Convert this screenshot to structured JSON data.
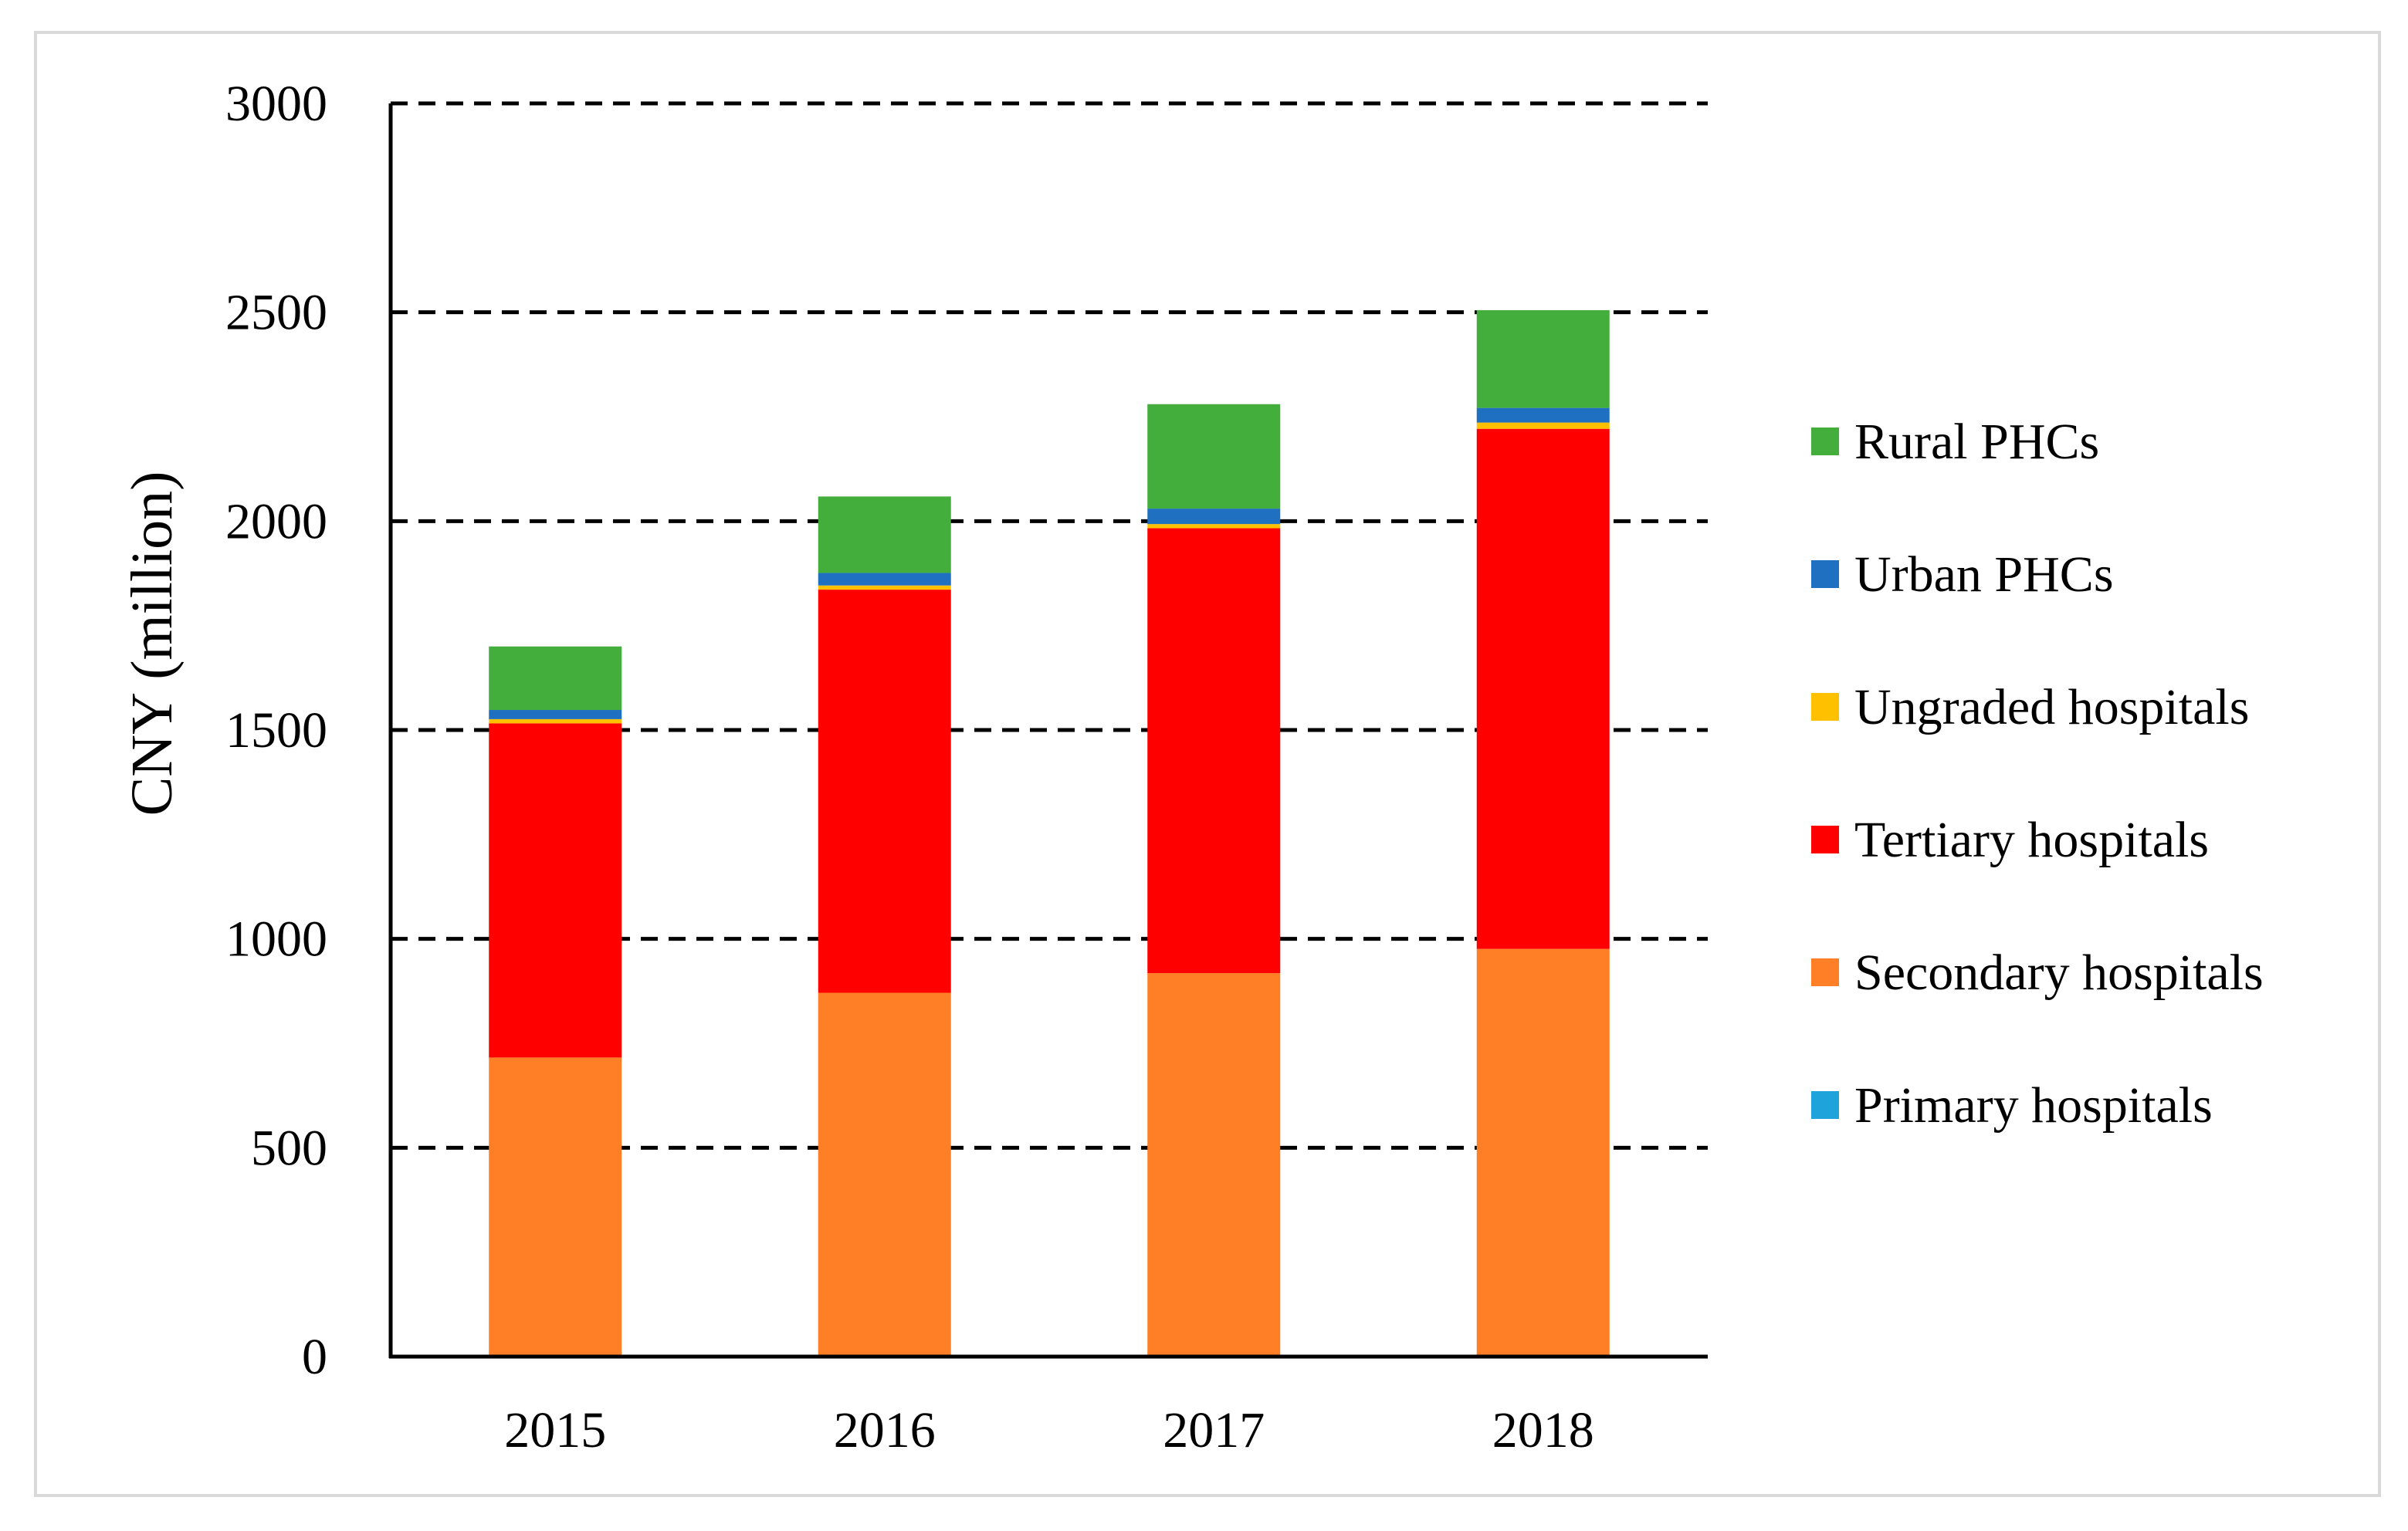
{
  "chart_data": {
    "type": "bar",
    "stacked": true,
    "title": "",
    "xlabel": "",
    "ylabel": "CNY (million)",
    "ylim": [
      0,
      3000
    ],
    "yticks": [
      0,
      500,
      1000,
      1500,
      2000,
      2500,
      3000
    ],
    "grid": "dashed horizontal",
    "legend_position": "right",
    "categories": [
      "2015",
      "2016",
      "2017",
      "2018"
    ],
    "series": [
      {
        "name": "Primary hospitals",
        "color": "#1FA3DB",
        "values": [
          1,
          1,
          1,
          1
        ]
      },
      {
        "name": "Secondary hospitals",
        "color": "#FF7F27",
        "values": [
          715,
          870,
          917,
          975
        ]
      },
      {
        "name": "Tertiary hospitals",
        "color": "#FF0000",
        "values": [
          800,
          965,
          1065,
          1245
        ]
      },
      {
        "name": "Ungraded hospitals",
        "color": "#FFC000",
        "values": [
          10,
          10,
          10,
          15
        ]
      },
      {
        "name": "Urban PHCs",
        "color": "#1F70C1",
        "values": [
          22,
          30,
          37,
          35
        ]
      },
      {
        "name": "Rural PHCs",
        "color": "#43AE3C",
        "values": [
          152,
          183,
          250,
          234
        ]
      }
    ]
  }
}
